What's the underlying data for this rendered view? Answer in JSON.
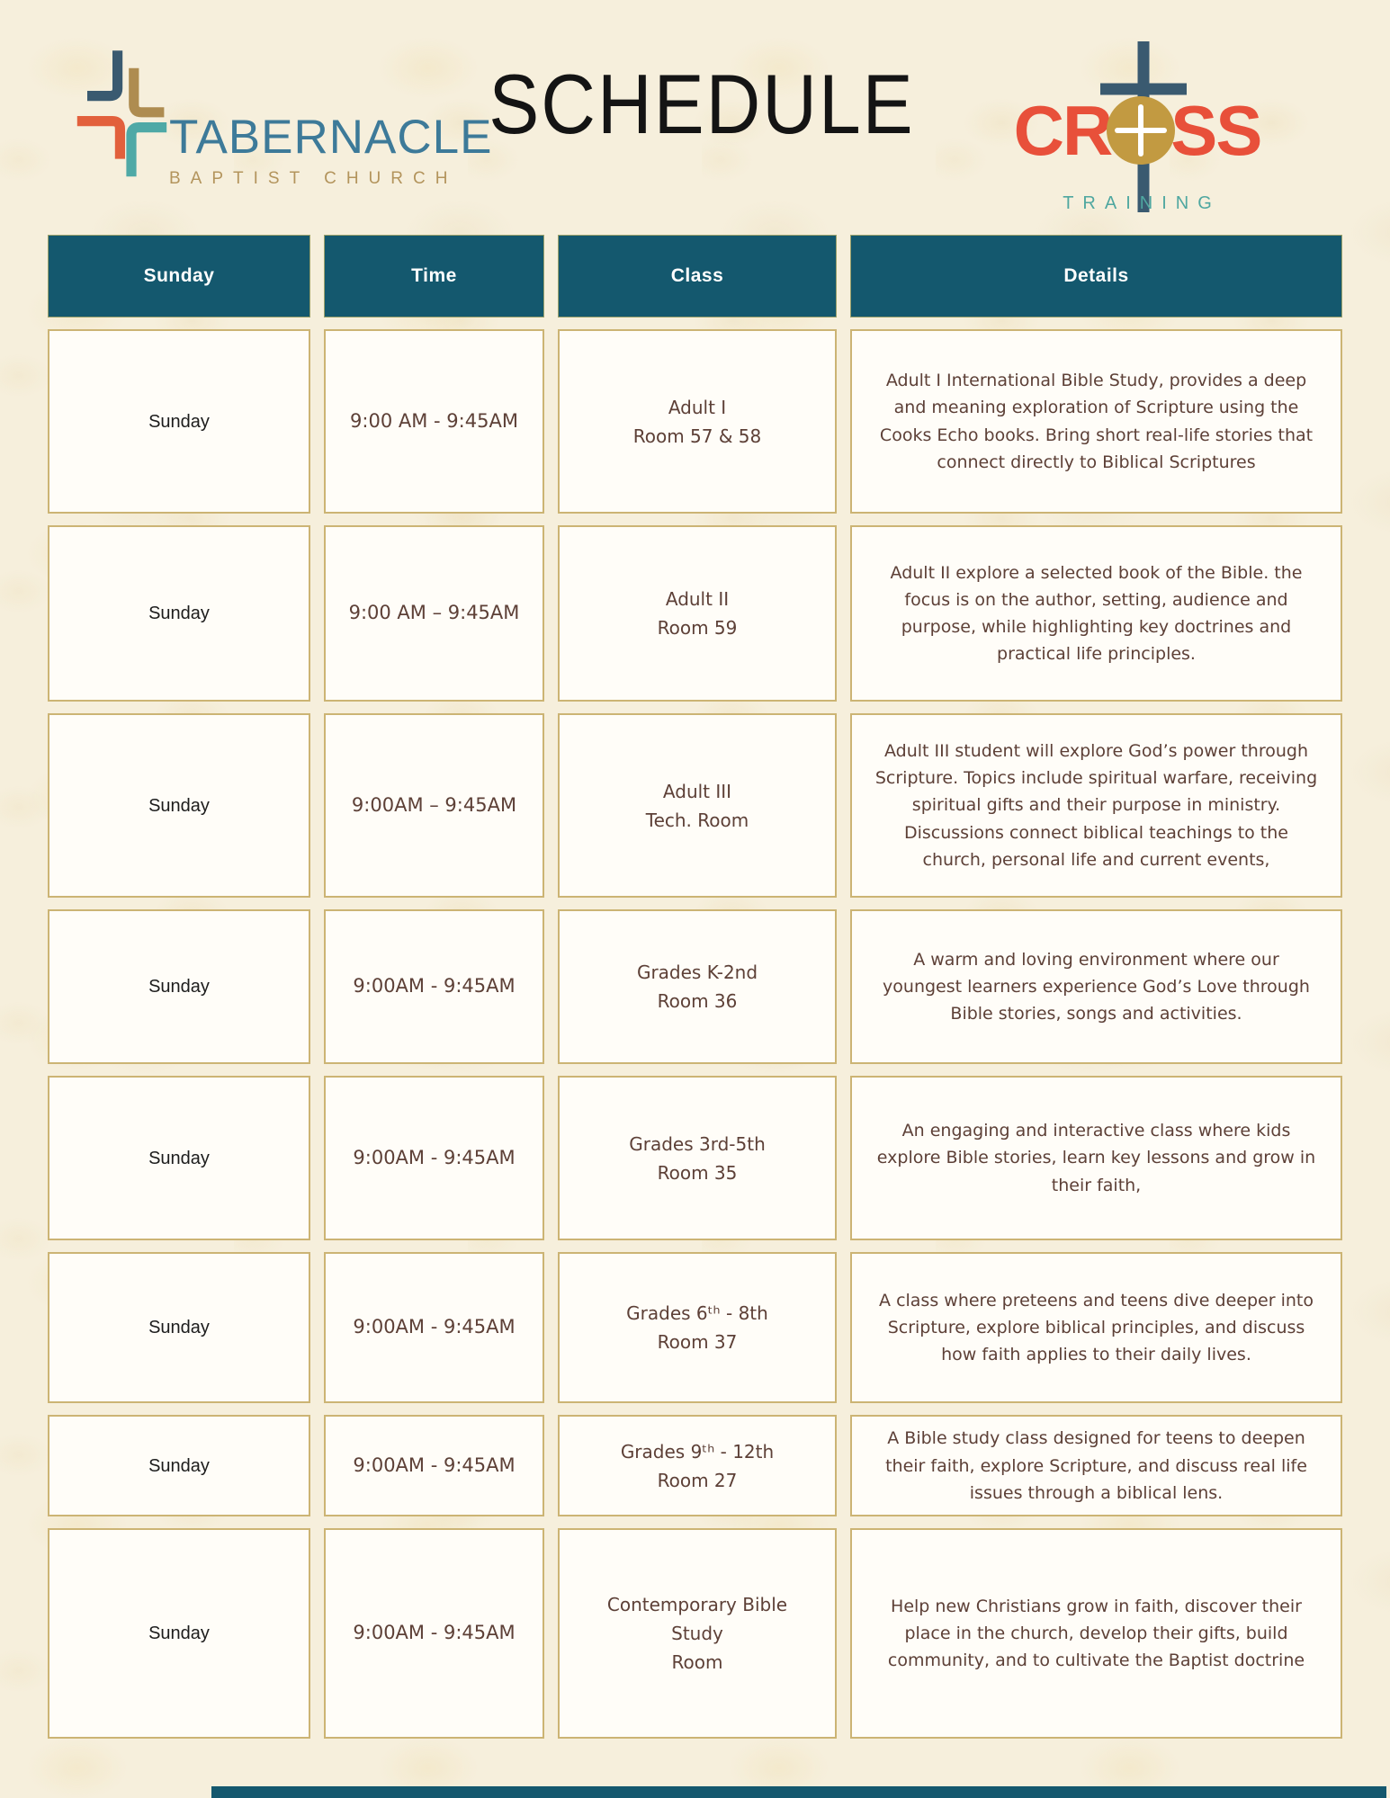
{
  "header": {
    "title": "SCHEDULE",
    "tabernacle_logo": {
      "name": "TABERNACLE",
      "subtitle": "BAPTIST CHURCH"
    },
    "cross_training_logo": {
      "word_left": "CR",
      "word_right": "SS",
      "subtitle": "TRAINING"
    }
  },
  "table": {
    "columns": [
      "Sunday",
      "Time",
      "Class",
      "Details"
    ],
    "rows": [
      {
        "day": "Sunday",
        "time": "9:00 AM - 9:45AM",
        "class_lines": [
          "Adult I",
          "Room 57 & 58"
        ],
        "details": "Adult I International Bible Study, provides a deep and meaning exploration of Scripture using the Cooks Echo books. Bring short real-life stories that connect directly to Biblical Scriptures"
      },
      {
        "day": "Sunday",
        "time": "9:00 AM – 9:45AM",
        "class_lines": [
          "Adult II",
          "Room 59"
        ],
        "details": "Adult II explore a selected book of the Bible. the focus is on the author, setting, audience and purpose, while highlighting key doctrines and practical life principles."
      },
      {
        "day": "Sunday",
        "time": "9:00AM – 9:45AM",
        "class_lines": [
          "Adult III",
          "Tech. Room"
        ],
        "details": "Adult III student will explore God’s power through Scripture. Topics include spiritual warfare, receiving spiritual gifts and their purpose in ministry. Discussions connect biblical teachings to the church, personal life and current events,"
      },
      {
        "day": "Sunday",
        "time": "9:00AM - 9:45AM",
        "class_lines": [
          "Grades K-2nd",
          "Room 36"
        ],
        "details": "A warm and loving environment where our youngest learners experience God’s Love through Bible stories, songs and activities."
      },
      {
        "day": "Sunday",
        "time": "9:00AM - 9:45AM",
        "class_lines": [
          "Grades 3rd-5th",
          "Room 35"
        ],
        "details": "An engaging and interactive class where kids explore Bible stories, learn key lessons and grow in their faith,"
      },
      {
        "day": "Sunday",
        "time": "9:00AM - 9:45AM",
        "class_lines": [
          "Grades 6ᵗʰ - 8th",
          "Room 37"
        ],
        "details": "A class where preteens and teens dive deeper into Scripture, explore biblical principles, and discuss how faith applies to their daily lives."
      },
      {
        "day": "Sunday",
        "time": "9:00AM - 9:45AM",
        "class_lines": [
          "Grades 9ᵗʰ - 12th",
          "Room 27"
        ],
        "details": "A Bible study class designed for teens to deepen their faith, explore Scripture, and discuss real life issues through a biblical lens."
      },
      {
        "day": "Sunday",
        "time": "9:00AM - 9:45AM",
        "class_lines": [
          "Contemporary Bible",
          "Study",
          "Room"
        ],
        "details": "Help new Christians grow in faith, discover their place in the church, develop their gifts, build community, and to cultivate the Baptist doctrine"
      }
    ]
  },
  "colors": {
    "header_teal": "#14586E",
    "page_bg": "#F6EFDC",
    "cell_bg": "#FFFDF8",
    "cell_border": "#CCB474",
    "detail_text": "#5D4037",
    "day_text": "#1C1C1C",
    "tabernacle_blue": "#3D7A99",
    "tabernacle_gold": "#B3945C",
    "logo_cross_blue": "#3A5A70",
    "logo_cross_gold": "#AE8C50",
    "logo_cross_orange": "#E2603C",
    "logo_cross_teal": "#4FA9A6",
    "cross_training_red": "#E8503A",
    "cross_training_gold": "#C29A41",
    "cross_training_teal": "#4FA7A0"
  }
}
